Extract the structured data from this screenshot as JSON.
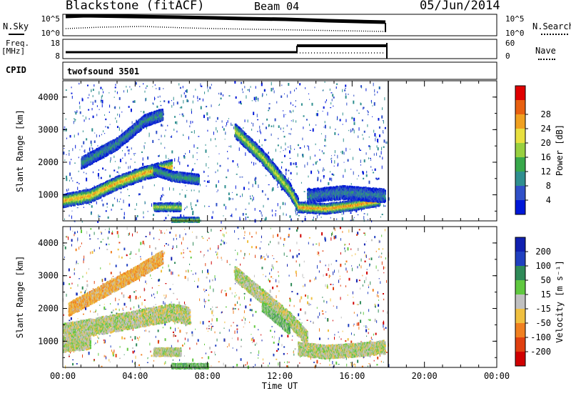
{
  "header": {
    "station": "Blackstone (fitACF)",
    "beam": "Beam 04",
    "date": "05/Jun/2014"
  },
  "panels": {
    "nsky_label": "N.Sky",
    "nsky_ticks": [
      "10^5",
      "10^0"
    ],
    "nsearch_label": "N.Search",
    "nsearch_ticks": [
      "10^5",
      "10^0"
    ],
    "freq_label": "Freq.",
    "freq_unit": "[MHz]",
    "freq_ticks": [
      "18",
      "8"
    ],
    "nave_label": "Nave",
    "nave_ticks": [
      "60",
      "0"
    ],
    "cpid_label": "CPID",
    "cpid_value": "twofsound 3501"
  },
  "colors": {
    "power": [
      "#0018d8",
      "#3050c8",
      "#2f8f8f",
      "#38a84b",
      "#98d040",
      "#e8e040",
      "#f0a020",
      "#e86010",
      "#e00000"
    ],
    "velocity": [
      "#1020b0",
      "#2040c0",
      "#2f8a58",
      "#60c840",
      "#c0c0c0",
      "#f0c040",
      "#f08020",
      "#e04010",
      "#d00000"
    ]
  },
  "chart_data": [
    {
      "type": "heatmap",
      "title": "Power",
      "ylabel": "Slant Range [km]",
      "xlabel": "",
      "x_ticks": [
        "00:00",
        "04:00",
        "08:00",
        "12:00",
        "16:00",
        "20:00",
        "00:00"
      ],
      "y_ticks": [
        1000,
        2000,
        3000,
        4000
      ],
      "ylim": [
        200,
        4500
      ],
      "x_hours": [
        0,
        24
      ],
      "data_end_hour": 18,
      "colorbar_label": "Power [dB]",
      "colorbar_ticks": [
        4,
        8,
        12,
        16,
        20,
        24,
        28
      ],
      "bands": [
        {
          "t": [
            0.0,
            1.5,
            3.0,
            4.5,
            6.0
          ],
          "r": [
            850,
            1000,
            1400,
            1700,
            1900
          ],
          "w": 200,
          "level": 0.8
        },
        {
          "t": [
            1.0,
            3.0,
            4.5,
            5.5
          ],
          "r": [
            2000,
            2600,
            3300,
            3500
          ],
          "w": 180,
          "level": 0.3
        },
        {
          "t": [
            5.0,
            6.0,
            7.5
          ],
          "r": [
            1800,
            1600,
            1500
          ],
          "w": 150,
          "level": 0.35
        },
        {
          "t": [
            9.5,
            11.0,
            12.5,
            13.0
          ],
          "r": [
            3000,
            2200,
            1200,
            700
          ],
          "w": 220,
          "level": 0.6
        },
        {
          "t": [
            13.0,
            14.5,
            16.0,
            17.5
          ],
          "r": [
            650,
            600,
            700,
            850
          ],
          "w": 150,
          "level": 0.85
        },
        {
          "t": [
            13.5,
            15.5,
            17.8
          ],
          "r": [
            1000,
            1100,
            1000
          ],
          "w": 200,
          "level": 0.25
        },
        {
          "t": [
            5.0,
            6.5
          ],
          "r": [
            650,
            650
          ],
          "w": 120,
          "level": 0.6
        },
        {
          "t": [
            6.0,
            7.5
          ],
          "r": [
            250,
            250
          ],
          "w": 80,
          "level": 0.55
        }
      ]
    },
    {
      "type": "heatmap",
      "title": "Velocity",
      "ylabel": "Slant Range [km]",
      "xlabel": "Time UT",
      "x_ticks": [
        "00:00",
        "04:00",
        "08:00",
        "12:00",
        "16:00",
        "20:00",
        "00:00"
      ],
      "y_ticks": [
        1000,
        2000,
        3000,
        4000
      ],
      "ylim": [
        200,
        4500
      ],
      "x_hours": [
        0,
        24
      ],
      "data_end_hour": 18,
      "colorbar_label": "Velocity [m s⁻¹]",
      "colorbar_ticks": [
        200,
        100,
        50,
        15,
        -15,
        -50,
        -100,
        -200
      ],
      "bands": [
        {
          "t": [
            0.0,
            2.0,
            4.0,
            6.0,
            7.0
          ],
          "r": [
            1300,
            1500,
            1700,
            1900,
            1800
          ],
          "w": 260,
          "level": 0.5
        },
        {
          "t": [
            0.3,
            2.0,
            4.0,
            5.5
          ],
          "r": [
            2000,
            2500,
            3100,
            3600
          ],
          "w": 200,
          "level": 0.65
        },
        {
          "t": [
            0.0,
            1.5
          ],
          "r": [
            900,
            1000
          ],
          "w": 200,
          "level": 0.5
        },
        {
          "t": [
            9.5,
            11.0,
            12.5,
            13.5
          ],
          "r": [
            3100,
            2400,
            1700,
            1100
          ],
          "w": 220,
          "level": 0.5
        },
        {
          "t": [
            11.0,
            12.5
          ],
          "r": [
            2100,
            1400
          ],
          "w": 160,
          "level": 0.4
        },
        {
          "t": [
            13.0,
            14.5,
            16.0,
            17.8
          ],
          "r": [
            800,
            700,
            750,
            850
          ],
          "w": 200,
          "level": 0.5
        },
        {
          "t": [
            5.0,
            6.5
          ],
          "r": [
            700,
            700
          ],
          "w": 120,
          "level": 0.5
        },
        {
          "t": [
            6.0,
            8.0
          ],
          "r": [
            250,
            250
          ],
          "w": 90,
          "level": 0.38
        }
      ]
    }
  ]
}
